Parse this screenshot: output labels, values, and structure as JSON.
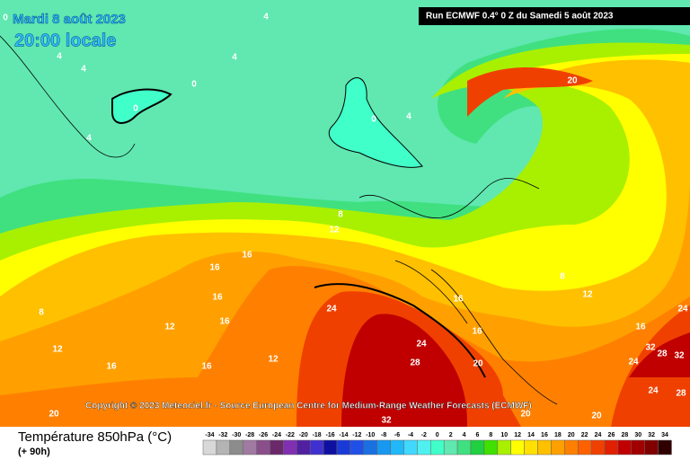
{
  "header": {
    "date": "Mardi 8 août 2023",
    "time": "20:00 locale",
    "run": "Run ECMWF 0.4° 0 Z du Samedi 5 août 2023"
  },
  "copyright": "Copyright © 2023 Meteociel.fr - Source European Centre for Medium-Range Weather Forecasts (ECMWF)",
  "footer": {
    "title": "Température 850hPa (°C)",
    "lead": "(+ 90h)"
  },
  "contour_labels": [
    "0",
    "4",
    "4",
    "4",
    "4",
    "0",
    "0",
    "0",
    "4",
    "4",
    "20",
    "8",
    "12",
    "16",
    "16",
    "16",
    "16",
    "12",
    "8",
    "12",
    "16",
    "16",
    "12",
    "24",
    "24",
    "28",
    "16",
    "16",
    "20",
    "12",
    "8",
    "16",
    "24",
    "32",
    "28",
    "32",
    "24",
    "24",
    "28",
    "20",
    "32",
    "20",
    "20"
  ],
  "scale": {
    "values": [
      -34,
      -32,
      -30,
      -28,
      -26,
      -24,
      -22,
      -20,
      -18,
      -16,
      -14,
      -12,
      -10,
      -8,
      -6,
      -4,
      -2,
      0,
      2,
      4,
      6,
      8,
      10,
      12,
      14,
      16,
      18,
      20,
      22,
      24,
      26,
      28,
      30,
      32,
      34
    ],
    "colors": [
      "#d8d8d8",
      "#b4b4b4",
      "#8c8c8c",
      "#a07aa0",
      "#8a4e8a",
      "#6a2a6a",
      "#8030b0",
      "#5020a0",
      "#4030d0",
      "#1010a0",
      "#1a3ad8",
      "#2050e8",
      "#1a70e0",
      "#1898f0",
      "#20b8f8",
      "#40d8ff",
      "#50f0f0",
      "#40ffc8",
      "#60e8b0",
      "#40e080",
      "#20d040",
      "#40e000",
      "#a8f000",
      "#ffff00",
      "#ffe000",
      "#ffc000",
      "#ffa000",
      "#ff8000",
      "#ff6000",
      "#f04000",
      "#e02000",
      "#c00000",
      "#a00000",
      "#800000",
      "#300000"
    ]
  }
}
